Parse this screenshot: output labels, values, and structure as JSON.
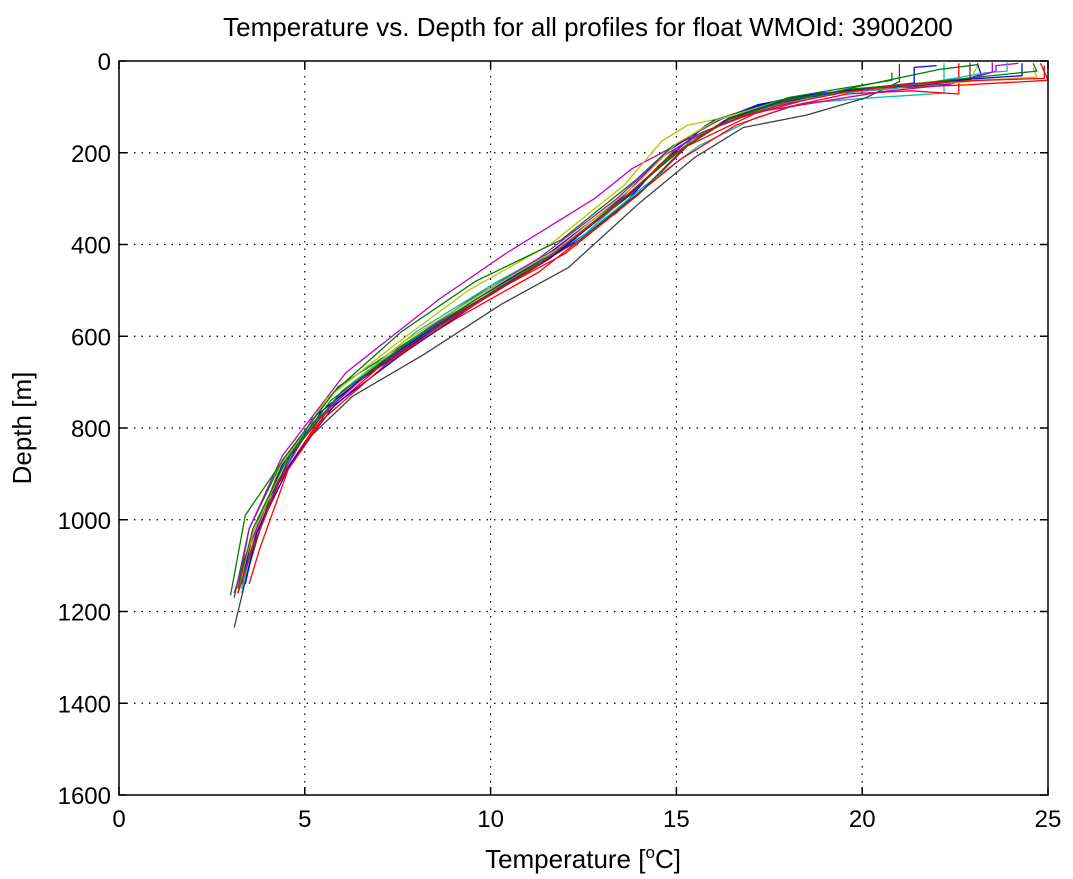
{
  "chart_data": {
    "type": "line",
    "title": "Temperature vs. Depth for all profiles for float WMOId: 3900200",
    "xlabel": "Temperature [",
    "xlabel_sup": "o",
    "xlabel_tail": "C]",
    "ylabel": "Depth [m]",
    "xlim": [
      0,
      25
    ],
    "ylim": [
      0,
      1600
    ],
    "y_reversed": true,
    "grid": true,
    "xticks": [
      "0",
      "5",
      "10",
      "15",
      "20",
      "25"
    ],
    "yticks": [
      "0",
      "200",
      "400",
      "600",
      "800",
      "1000",
      "1200",
      "1400",
      "1600"
    ],
    "series": [
      {
        "color": "#0000ff",
        "points": [
          [
            22,
            10
          ],
          [
            21.4,
            14
          ],
          [
            21.4,
            48
          ],
          [
            19.5,
            65
          ],
          [
            18.5,
            75
          ],
          [
            17.2,
            95
          ],
          [
            15.8,
            140
          ],
          [
            14.5,
            230
          ],
          [
            13.4,
            330
          ],
          [
            11.4,
            440
          ],
          [
            9.3,
            540
          ],
          [
            6.6,
            690
          ],
          [
            5.2,
            780
          ],
          [
            3.8,
            990
          ],
          [
            3.3,
            1150
          ]
        ]
      },
      {
        "color": "#008000",
        "points": [
          [
            20.8,
            25
          ],
          [
            20.8,
            42
          ],
          [
            19.3,
            62
          ],
          [
            18,
            80
          ],
          [
            16.6,
            120
          ],
          [
            15,
            190
          ],
          [
            13.8,
            290
          ],
          [
            12.2,
            390
          ],
          [
            10,
            490
          ],
          [
            8,
            600
          ],
          [
            5.9,
            710
          ],
          [
            4.4,
            870
          ],
          [
            3.5,
            1020
          ],
          [
            3.1,
            1170
          ]
        ]
      },
      {
        "color": "#ff0000",
        "points": [
          [
            24.8,
            5
          ],
          [
            25,
            42
          ],
          [
            22.8,
            52
          ],
          [
            20,
            62
          ],
          [
            18.6,
            82
          ],
          [
            17.1,
            115
          ],
          [
            15.3,
            185
          ],
          [
            14,
            290
          ],
          [
            12,
            420
          ],
          [
            9.7,
            520
          ],
          [
            7.5,
            630
          ],
          [
            5.8,
            740
          ],
          [
            4.6,
            880
          ],
          [
            3.8,
            1060
          ],
          [
            3.5,
            1140
          ]
        ]
      },
      {
        "color": "#00bfbf",
        "points": [
          [
            22.2,
            5
          ],
          [
            22.2,
            70
          ],
          [
            20.3,
            80
          ],
          [
            18.4,
            92
          ],
          [
            17.1,
            125
          ],
          [
            15.6,
            185
          ],
          [
            14.1,
            275
          ],
          [
            12.6,
            375
          ],
          [
            10.4,
            480
          ],
          [
            8.2,
            590
          ],
          [
            6.3,
            700
          ],
          [
            4.8,
            830
          ],
          [
            3.9,
            990
          ],
          [
            3.3,
            1160
          ]
        ]
      },
      {
        "color": "#bf00bf",
        "points": [
          [
            24.2,
            5
          ],
          [
            23.6,
            10
          ],
          [
            23.6,
            22
          ],
          [
            22.6,
            45
          ],
          [
            20.4,
            62
          ],
          [
            18.6,
            78
          ],
          [
            17.2,
            105
          ],
          [
            15.3,
            170
          ],
          [
            13.8,
            235
          ],
          [
            12.8,
            300
          ],
          [
            10.4,
            420
          ],
          [
            8.6,
            520
          ],
          [
            6.1,
            680
          ],
          [
            4.4,
            860
          ],
          [
            3.5,
            1020
          ],
          [
            3.2,
            1150
          ]
        ]
      },
      {
        "color": "#bfbf00",
        "points": [
          [
            24.6,
            15
          ],
          [
            24.7,
            35
          ],
          [
            22.5,
            45
          ],
          [
            21,
            55
          ],
          [
            19.2,
            68
          ],
          [
            17.6,
            92
          ],
          [
            16.2,
            125
          ],
          [
            15.3,
            140
          ],
          [
            14.6,
            175
          ],
          [
            13.6,
            270
          ],
          [
            11.6,
            400
          ],
          [
            9.4,
            500
          ],
          [
            7.4,
            620
          ],
          [
            5.6,
            735
          ],
          [
            4.3,
            890
          ],
          [
            3.6,
            1050
          ],
          [
            3.2,
            1150
          ]
        ]
      },
      {
        "color": "#404040",
        "points": [
          [
            21,
            6
          ],
          [
            21,
            45
          ],
          [
            20.1,
            80
          ],
          [
            18.5,
            118
          ],
          [
            16.8,
            145
          ],
          [
            15.5,
            210
          ],
          [
            14,
            310
          ],
          [
            12.1,
            450
          ],
          [
            10.3,
            530
          ],
          [
            8.2,
            640
          ],
          [
            6.3,
            730
          ],
          [
            5,
            830
          ],
          [
            4.1,
            940
          ],
          [
            3.5,
            1100
          ],
          [
            3.1,
            1235
          ]
        ]
      },
      {
        "color": "#0000ff",
        "points": [
          [
            23.1,
            5
          ],
          [
            23.2,
            30
          ],
          [
            22.3,
            50
          ],
          [
            20.6,
            58
          ],
          [
            18.9,
            70
          ],
          [
            17.3,
            95
          ],
          [
            16,
            130
          ],
          [
            14.8,
            195
          ],
          [
            13.5,
            300
          ],
          [
            11.4,
            430
          ],
          [
            9.6,
            520
          ],
          [
            7.2,
            650
          ],
          [
            5.5,
            760
          ],
          [
            4.4,
            880
          ],
          [
            3.6,
            1030
          ],
          [
            3.3,
            1140
          ]
        ]
      },
      {
        "color": "#008000",
        "points": [
          [
            23.1,
            8
          ],
          [
            22.1,
            18
          ],
          [
            20.1,
            52
          ],
          [
            19,
            72
          ],
          [
            17.8,
            85
          ],
          [
            16.3,
            122
          ],
          [
            14.9,
            185
          ],
          [
            13.9,
            260
          ],
          [
            11.9,
            390
          ],
          [
            9.6,
            480
          ],
          [
            7.6,
            590
          ],
          [
            5.8,
            720
          ],
          [
            4.5,
            860
          ],
          [
            3.4,
            990
          ],
          [
            3,
            1165
          ]
        ]
      },
      {
        "color": "#ff0000",
        "points": [
          [
            22.6,
            5
          ],
          [
            22.6,
            72
          ],
          [
            21.3,
            65
          ],
          [
            19.6,
            72
          ],
          [
            18.1,
            98
          ],
          [
            16.6,
            140
          ],
          [
            15.1,
            215
          ],
          [
            13.5,
            320
          ],
          [
            11.3,
            460
          ],
          [
            9.1,
            560
          ],
          [
            7.1,
            660
          ],
          [
            5.4,
            780
          ],
          [
            4.3,
            920
          ],
          [
            3.6,
            1060
          ],
          [
            3.2,
            1160
          ]
        ]
      },
      {
        "color": "#00bfbf",
        "points": [
          [
            23.9,
            3
          ],
          [
            23.9,
            22
          ],
          [
            23.3,
            26
          ],
          [
            22.6,
            36
          ],
          [
            20.9,
            60
          ],
          [
            19.2,
            72
          ],
          [
            17.5,
            100
          ],
          [
            15.6,
            160
          ],
          [
            14.2,
            255
          ],
          [
            12.5,
            380
          ],
          [
            10.2,
            480
          ],
          [
            8,
            590
          ],
          [
            6,
            720
          ],
          [
            4.6,
            860
          ],
          [
            3.7,
            1030
          ],
          [
            3.3,
            1150
          ]
        ]
      },
      {
        "color": "#bf00bf",
        "points": [
          [
            23.5,
            3
          ],
          [
            23.5,
            24
          ],
          [
            22.3,
            52
          ],
          [
            20.6,
            66
          ],
          [
            18.8,
            90
          ],
          [
            17.1,
            112
          ],
          [
            15.7,
            155
          ],
          [
            14.6,
            210
          ],
          [
            13.4,
            300
          ],
          [
            11.3,
            430
          ],
          [
            9.1,
            540
          ],
          [
            7,
            660
          ],
          [
            5.2,
            790
          ],
          [
            4.1,
            940
          ],
          [
            3.4,
            1080
          ],
          [
            3.1,
            1160
          ]
        ]
      },
      {
        "color": "#bfbf00",
        "points": [
          [
            23.1,
            10
          ],
          [
            22.9,
            45
          ],
          [
            21.1,
            55
          ],
          [
            19.2,
            68
          ],
          [
            17.6,
            92
          ],
          [
            16.1,
            128
          ],
          [
            15,
            180
          ],
          [
            13.9,
            270
          ],
          [
            11.8,
            410
          ],
          [
            9.7,
            510
          ],
          [
            7.7,
            610
          ],
          [
            5.9,
            730
          ],
          [
            4.5,
            870
          ],
          [
            3.6,
            1030
          ],
          [
            3.2,
            1150
          ]
        ]
      },
      {
        "color": "#404040",
        "points": [
          [
            22.9,
            4
          ],
          [
            22.9,
            40
          ],
          [
            21.7,
            52
          ],
          [
            19.8,
            62
          ],
          [
            17.9,
            85
          ],
          [
            16.4,
            125
          ],
          [
            15.2,
            190
          ],
          [
            14.1,
            280
          ],
          [
            12.4,
            390
          ],
          [
            10.1,
            500
          ],
          [
            8,
            610
          ],
          [
            6,
            720
          ],
          [
            4.6,
            860
          ],
          [
            3.7,
            1030
          ],
          [
            3.2,
            1160
          ]
        ]
      },
      {
        "color": "#0000ff",
        "points": [
          [
            24.3,
            5
          ],
          [
            24.3,
            32
          ],
          [
            22.8,
            40
          ],
          [
            21.1,
            52
          ],
          [
            19.4,
            66
          ],
          [
            17.8,
            90
          ],
          [
            16.3,
            130
          ],
          [
            15,
            200
          ],
          [
            13.6,
            300
          ],
          [
            11.6,
            430
          ],
          [
            9.6,
            530
          ],
          [
            7.6,
            640
          ],
          [
            5.8,
            750
          ],
          [
            4.6,
            880
          ],
          [
            3.7,
            1030
          ],
          [
            3.4,
            1140
          ]
        ]
      },
      {
        "color": "#008000",
        "points": [
          [
            24.6,
            5
          ],
          [
            24.7,
            22
          ],
          [
            23.1,
            35
          ],
          [
            21.6,
            48
          ],
          [
            19.6,
            62
          ],
          [
            17.9,
            88
          ],
          [
            16.4,
            128
          ],
          [
            15.1,
            195
          ],
          [
            13.7,
            290
          ],
          [
            11.7,
            420
          ],
          [
            9.6,
            520
          ],
          [
            7.5,
            630
          ],
          [
            5.7,
            740
          ],
          [
            4.5,
            870
          ],
          [
            3.6,
            1020
          ],
          [
            3.2,
            1150
          ]
        ]
      },
      {
        "color": "#ff0000",
        "points": [
          [
            24.9,
            10
          ],
          [
            24.9,
            38
          ],
          [
            23.2,
            42
          ],
          [
            21.3,
            50
          ],
          [
            19.5,
            68
          ],
          [
            17.7,
            98
          ],
          [
            16.1,
            140
          ],
          [
            14.8,
            210
          ],
          [
            13.3,
            320
          ],
          [
            11.2,
            450
          ],
          [
            9.2,
            550
          ],
          [
            7.2,
            660
          ],
          [
            5.5,
            780
          ],
          [
            4.3,
            920
          ],
          [
            3.6,
            1060
          ],
          [
            3.2,
            1160
          ]
        ]
      }
    ]
  }
}
